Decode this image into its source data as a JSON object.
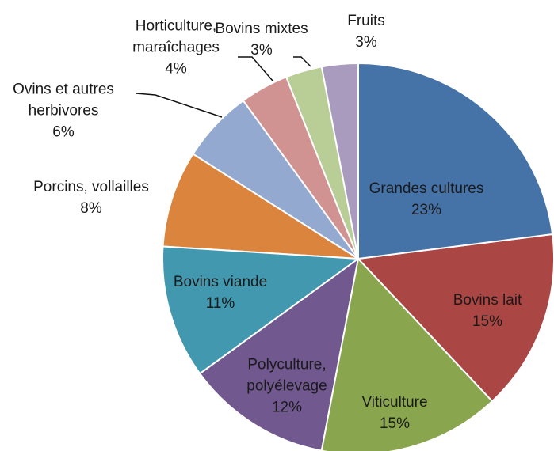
{
  "chart_data": {
    "type": "pie",
    "categories": [
      "Grandes cultures",
      "Bovins lait",
      "Viticulture",
      "Polyculture, polyélevage",
      "Bovins viande",
      "Porcins, vollailles",
      "Ovins et autres herbivores",
      "Horticulture, maraîchages",
      "Bovins mixtes",
      "Fruits"
    ],
    "values": [
      23,
      15,
      15,
      12,
      11,
      8,
      6,
      4,
      3,
      3
    ],
    "value_labels": [
      "23%",
      "15%",
      "15%",
      "12%",
      "11%",
      "8%",
      "6%",
      "4%",
      "3%",
      "3%"
    ],
    "colors": [
      "#4572a7",
      "#aa4643",
      "#89a54e",
      "#71588f",
      "#4198af",
      "#db843d",
      "#93a9cf",
      "#d19392",
      "#b9cd96",
      "#a99bbd"
    ]
  }
}
